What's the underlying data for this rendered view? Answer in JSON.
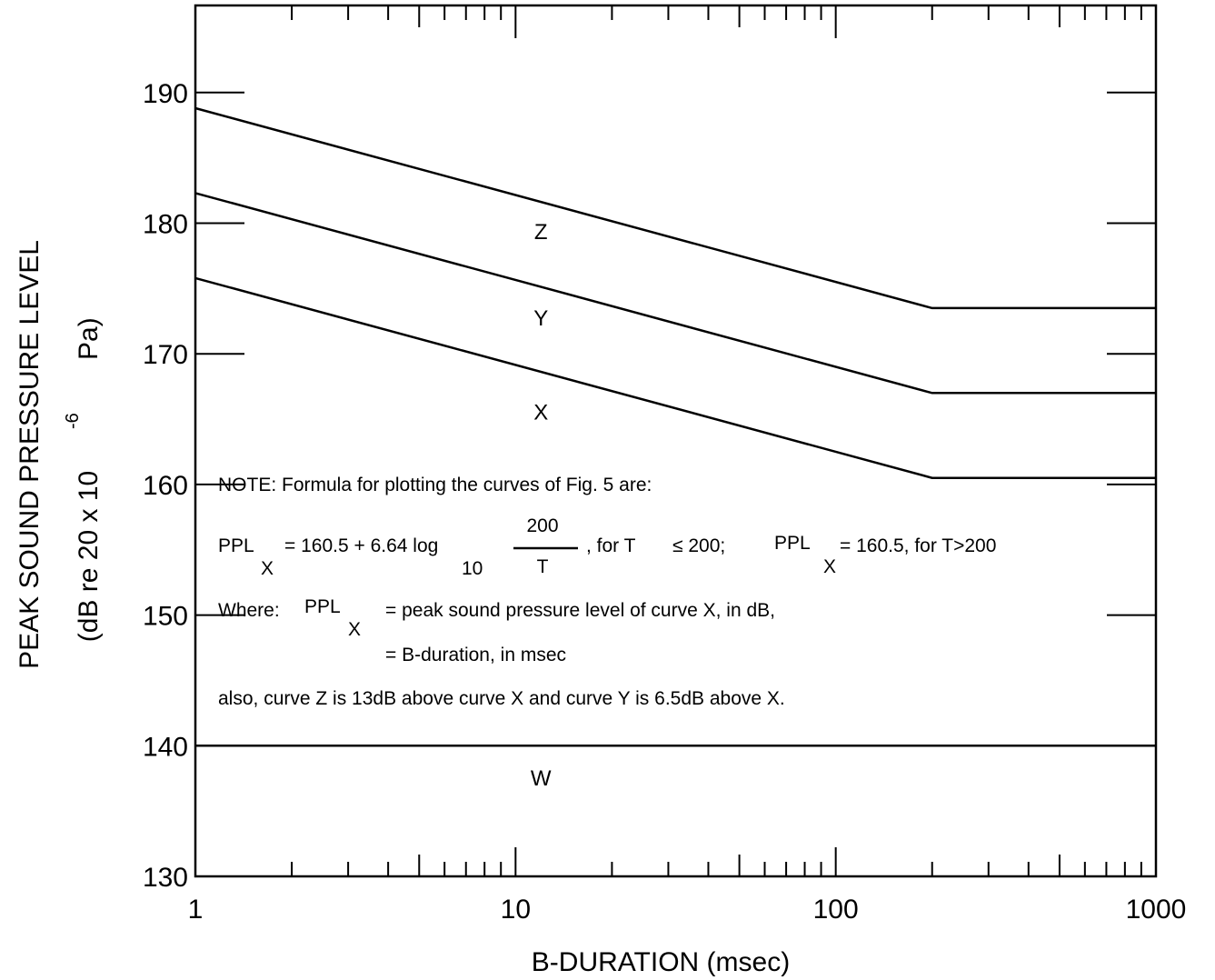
{
  "chart_data": {
    "type": "line",
    "title": "",
    "xlabel": "B-DURATION (msec)",
    "ylabel": {
      "line1": "PEAK SOUND PRESSURE LEVEL",
      "line2_prefix": "(dB re 20 x 10",
      "line2_exp": "-6",
      "line2_suffix": "Pa)"
    },
    "x_scale": "log",
    "xlim": [
      1,
      1000
    ],
    "ylim": [
      130,
      195
    ],
    "x_ticks": [
      "1",
      "10",
      "100",
      "1000"
    ],
    "y_ticks": [
      "130",
      "140",
      "150",
      "160",
      "170",
      "180",
      "190"
    ],
    "grid": false,
    "series": [
      {
        "name": "Z",
        "x": [
          1,
          200,
          1000
        ],
        "y": [
          188.8,
          173.5,
          173.5
        ]
      },
      {
        "name": "Y",
        "x": [
          1,
          200,
          1000
        ],
        "y": [
          182.3,
          167.0,
          167.0
        ]
      },
      {
        "name": "X",
        "x": [
          1,
          200,
          1000
        ],
        "y": [
          175.8,
          160.5,
          160.5
        ]
      },
      {
        "name": "W",
        "x": [
          1,
          1000
        ],
        "y": [
          140,
          140
        ]
      }
    ],
    "curve_labels": [
      {
        "text": "Z",
        "x": 12,
        "y": 179.4
      },
      {
        "text": "Y",
        "x": 12,
        "y": 172.8
      },
      {
        "text": "X",
        "x": 12,
        "y": 165.6
      },
      {
        "text": "W",
        "x": 12,
        "y": 137.6
      }
    ],
    "note": {
      "line1": "NOTE: Formula for plotting the curves of Fig. 5 are:",
      "ppl": "PPL",
      "sub_x": "X",
      "eq_text": "= 160.5 + 6.64 log",
      "log_base": "10",
      "frac_num": "200",
      "frac_den": "T",
      "cond1": ",  for T",
      "cond1_sym": "≤ 200;",
      "ppl2": "PPL",
      "sub_x2": "X",
      "eq2_text": "= 160.5, for T>200",
      "where_label": "Where:",
      "where_ppl": "PPL",
      "where_sub": "X",
      "where_def1": "= peak sound pressure level of curve X, in dB,",
      "where_def2": "= B-duration, in msec",
      "also": "also, curve Z is 13dB above curve X and curve Y is 6.5dB above X."
    }
  }
}
